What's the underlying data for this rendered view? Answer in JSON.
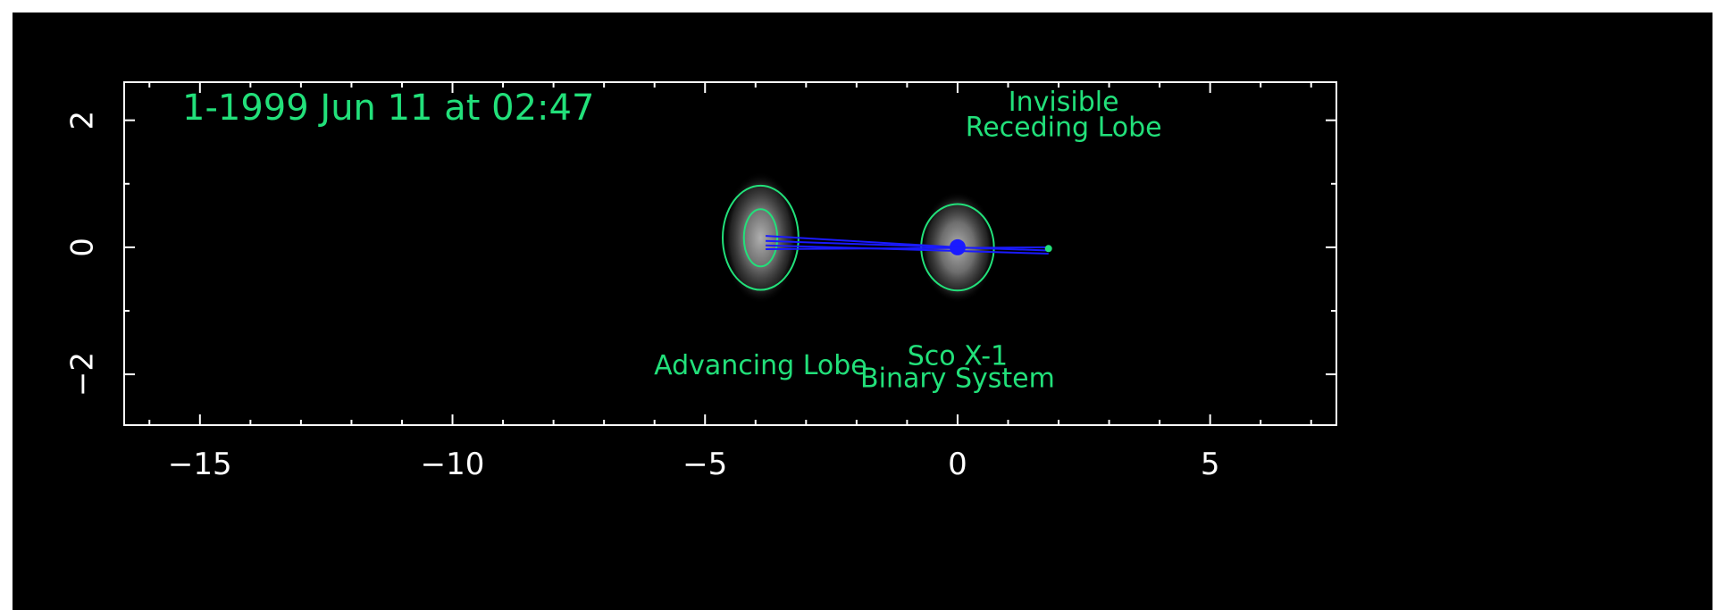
{
  "chart_data": {
    "type": "scatter",
    "title": "1-1999 Jun 11 at 02:47",
    "xlabel": "",
    "ylabel": "",
    "xlim": [
      -16.5,
      7.5
    ],
    "ylim": [
      -2.8,
      2.6
    ],
    "x_ticks": [
      -15,
      -10,
      -5,
      0,
      5
    ],
    "x_tick_labels": [
      "−15",
      "−10",
      "−5",
      "0",
      "5"
    ],
    "y_ticks": [
      -2,
      0,
      2
    ],
    "y_tick_labels": [
      "−2",
      "0",
      "2"
    ],
    "grid": false,
    "sources": [
      {
        "name": "Advancing Lobe",
        "x": -3.9,
        "y": 0.15,
        "sigma_x": 0.5,
        "sigma_y": 0.65,
        "contours": [
          {
            "rx": 0.75,
            "ry": 0.82
          },
          {
            "rx": 0.33,
            "ry": 0.45
          }
        ]
      },
      {
        "name": "Sco X-1 Binary System",
        "x": 0.0,
        "y": 0.0,
        "sigma_x": 0.5,
        "sigma_y": 0.55,
        "contours": [
          {
            "rx": 0.72,
            "ry": 0.68
          }
        ],
        "core": true
      }
    ],
    "jet_lines": [
      {
        "x1": -3.8,
        "y1": 0.18,
        "x2": 0.0,
        "y2": 0.0
      },
      {
        "x1": -3.8,
        "y1": 0.1,
        "x2": 1.8,
        "y2": -0.05
      },
      {
        "x1": -3.8,
        "y1": 0.03,
        "x2": 1.8,
        "y2": -0.1
      },
      {
        "x1": -3.8,
        "y1": -0.03,
        "x2": 1.8,
        "y2": 0.0
      }
    ],
    "annotations": [
      {
        "text": "Invisible",
        "x": 2.1,
        "y": 2.15
      },
      {
        "text": "Receding Lobe",
        "x": 2.1,
        "y": 1.75
      },
      {
        "text": "Advancing Lobe",
        "x": -3.9,
        "y": -2.0
      },
      {
        "text": "Sco X-1",
        "x": 0.0,
        "y": -1.85
      },
      {
        "text": "Binary System",
        "x": 0.0,
        "y": -2.2
      }
    ],
    "colors": {
      "contour": "#22e07a",
      "jet": "#1a1aff",
      "axes": "#ffffff",
      "text": "#22e07a"
    }
  }
}
